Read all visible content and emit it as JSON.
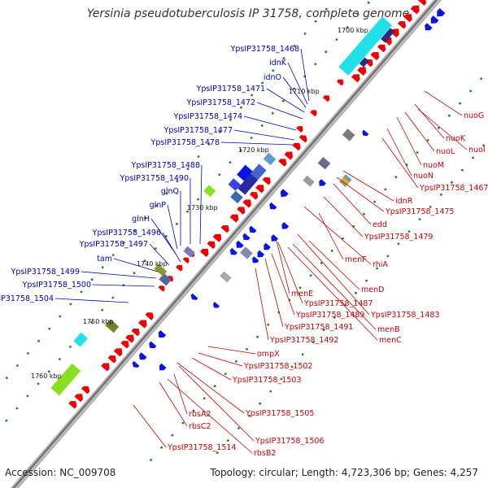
{
  "title": "Yersinia pseudotuberculosis IP 31758, complete genome",
  "footer": {
    "accession": "Accession: NC_009708",
    "topology": "Topology: circular; Length: 4,723,306 bp; Genes: 4,257"
  },
  "colors": {
    "forward_strand": "#ee0000",
    "reverse_strand": "#0a14e6",
    "backbone": "#777777",
    "tick_dots": "#1a8a1a",
    "cyan_feature": "#22e0e8",
    "green_feature": "#88e020",
    "navy_feature": "#2a2a80",
    "forward_label": "#cc0000",
    "reverse_label": "#0000c0"
  },
  "diagram": {
    "kbp_ticks": [
      "1700 kbp",
      "1710 kbp",
      "1720 kbp",
      "1730 kbp",
      "1740 kbp",
      "1750 kbp",
      "1760 kbp"
    ],
    "left_labels": [
      "YpsIP31758_1468",
      "idnK",
      "idnO",
      "YpsIP31758_1471",
      "YpsIP31758_1472",
      "YpsIP31758_1474",
      "YpsIP31758_1477",
      "YpsIP31758_1478",
      "YpsIP31758_1488",
      "YpsIP31758_1490",
      "glnQ",
      "glnP",
      "glnH",
      "YpsIP31758_1496",
      "YpsIP31758_1497",
      "tam",
      "YpsIP31758_1499",
      "YpsIP31758_1500",
      "YpsIP31758_1504"
    ],
    "right_labels": [
      "nuoG",
      "nuoK",
      "nuoI",
      "nuoL",
      "nuoM",
      "nuoN",
      "YpsIP31758_1467",
      "idnR",
      "YpsIP31758_1475",
      "edd",
      "YpsIP31758_1479",
      "menF",
      "rhiA",
      "menD",
      "menE",
      "YpsIP31758_1487",
      "YpsIP31758_1483",
      "YpsIP31758_1489",
      "menB",
      "YpsIP31758_1491",
      "menC",
      "YpsIP31758_1492",
      "ompX",
      "YpsIP31758_1502",
      "YpsIP31758_1503",
      "YpsIP31758_1505",
      "rbsA2",
      "rbsC2",
      "YpsIP31758_1506",
      "rbsB2",
      "YpsIP31758_1514"
    ]
  }
}
